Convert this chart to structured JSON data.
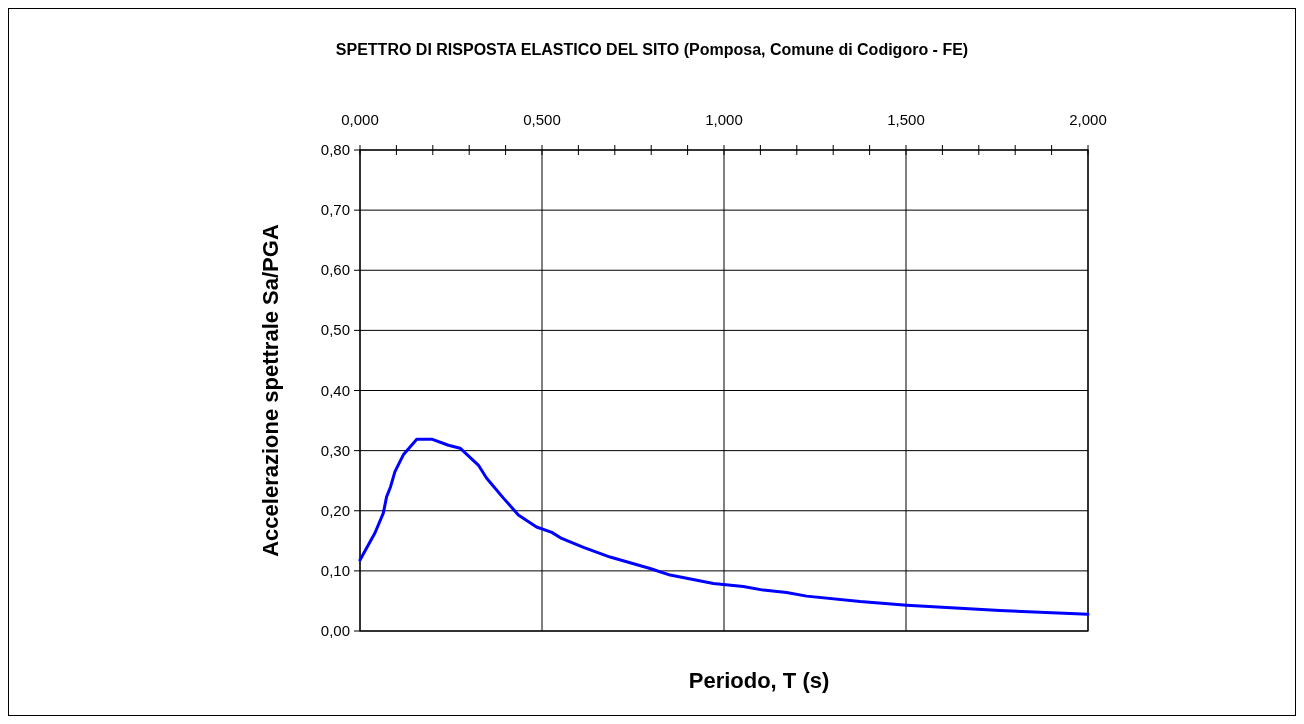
{
  "chart_data": {
    "type": "line",
    "title": "SPETTRO DI RISPOSTA ELASTICO DEL SITO (Pomposa, Comune di Codigoro - FE)",
    "xlabel": "Periodo, T (s)",
    "ylabel": "Accelerazione spettrale Sa/PGA",
    "xlim": [
      0,
      2
    ],
    "ylim": [
      0,
      0.8
    ],
    "xticks": [
      {
        "value": 0,
        "label": "0,000"
      },
      {
        "value": 0.1,
        "label": null
      },
      {
        "value": 0.2,
        "label": null
      },
      {
        "value": 0.3,
        "label": null
      },
      {
        "value": 0.4,
        "label": null
      },
      {
        "value": 0.5,
        "label": "0,500"
      },
      {
        "value": 0.6,
        "label": null
      },
      {
        "value": 0.7,
        "label": null
      },
      {
        "value": 0.8,
        "label": null
      },
      {
        "value": 0.9,
        "label": null
      },
      {
        "value": 1,
        "label": "1,000"
      },
      {
        "value": 1.1,
        "label": null
      },
      {
        "value": 1.2,
        "label": null
      },
      {
        "value": 1.3,
        "label": null
      },
      {
        "value": 1.4,
        "label": null
      },
      {
        "value": 1.5,
        "label": "1,500"
      },
      {
        "value": 1.6,
        "label": null
      },
      {
        "value": 1.7,
        "label": null
      },
      {
        "value": 1.8,
        "label": null
      },
      {
        "value": 1.9,
        "label": null
      },
      {
        "value": 2,
        "label": "2,000"
      }
    ],
    "yticks": [
      {
        "value": 0,
        "label": "0,00"
      },
      {
        "value": 0.1,
        "label": "0,10"
      },
      {
        "value": 0.2,
        "label": "0,20"
      },
      {
        "value": 0.3,
        "label": "0,30"
      },
      {
        "value": 0.4,
        "label": "0,40"
      },
      {
        "value": 0.5,
        "label": "0,50"
      },
      {
        "value": 0.6,
        "label": "0,60"
      },
      {
        "value": 0.7,
        "label": "0,70"
      },
      {
        "value": 0.8,
        "label": "0,80"
      }
    ],
    "grid": true,
    "marker": "none",
    "line_style": "solid",
    "series": [
      {
        "color": "#0000ff",
        "x": [
          0,
          0.041,
          0.064,
          0.073,
          0.084,
          0.096,
          0.119,
          0.156,
          0.197,
          0.243,
          0.275,
          0.325,
          0.348,
          0.394,
          0.435,
          0.485,
          0.527,
          0.554,
          0.614,
          0.659,
          0.687,
          0.797,
          0.852,
          0.971,
          1.053,
          1.108,
          1.172,
          1.227,
          1.374,
          1.502,
          1.758,
          2.0
        ],
        "values": [
          0.118,
          0.163,
          0.196,
          0.223,
          0.24,
          0.265,
          0.293,
          0.319,
          0.319,
          0.309,
          0.304,
          0.276,
          0.254,
          0.221,
          0.193,
          0.173,
          0.164,
          0.154,
          0.139,
          0.129,
          0.123,
          0.104,
          0.093,
          0.079,
          0.074,
          0.068,
          0.064,
          0.058,
          0.049,
          0.043,
          0.034,
          0.028
        ]
      }
    ]
  }
}
